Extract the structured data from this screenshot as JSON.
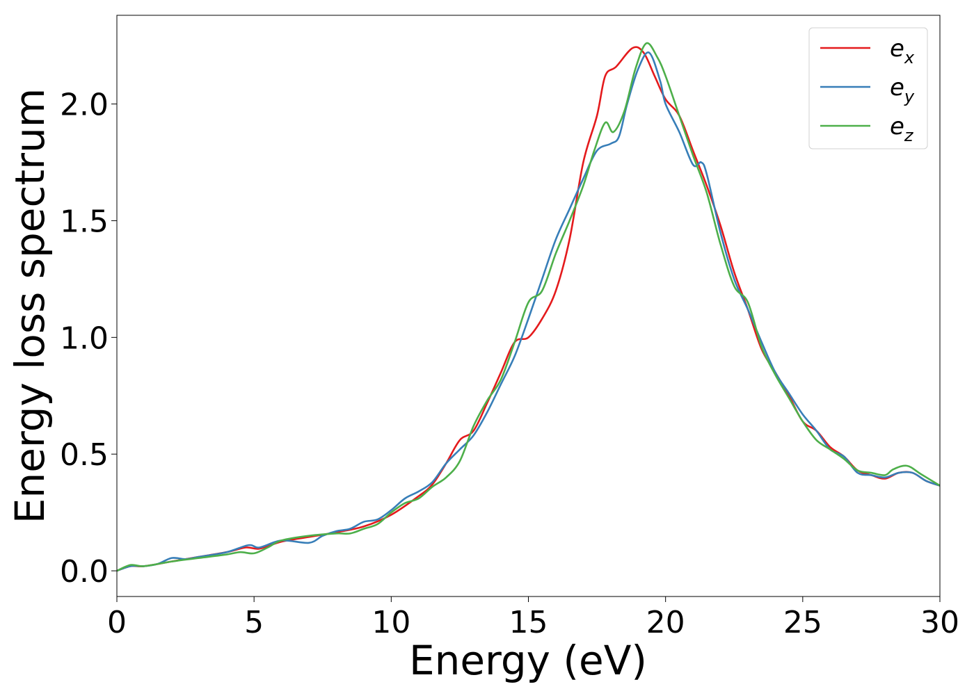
{
  "chart_data": {
    "type": "line",
    "title": "",
    "xlabel": "Energy (eV)",
    "ylabel": "Energy loss spectrum",
    "xlim": [
      0,
      30
    ],
    "ylim": [
      -0.11,
      2.38
    ],
    "xticks": [
      0,
      5,
      10,
      15,
      20,
      25,
      30
    ],
    "xtick_labels": [
      "0",
      "5",
      "10",
      "15",
      "20",
      "25",
      "30"
    ],
    "yticks": [
      0.0,
      0.5,
      1.0,
      1.5,
      2.0
    ],
    "ytick_labels": [
      "0.0",
      "0.5",
      "1.0",
      "1.5",
      "2.0"
    ],
    "grid": false,
    "legend_position": "top-right",
    "series": [
      {
        "name": "e_x",
        "label_base": "e",
        "label_sub": "x",
        "color": "#e41a1c",
        "points": [
          [
            0,
            0
          ],
          [
            0.5,
            0.02
          ],
          [
            1,
            0.02
          ],
          [
            2,
            0.04
          ],
          [
            3,
            0.06
          ],
          [
            4,
            0.08
          ],
          [
            4.7,
            0.1
          ],
          [
            5.2,
            0.095
          ],
          [
            6,
            0.125
          ],
          [
            7,
            0.145
          ],
          [
            8,
            0.165
          ],
          [
            9,
            0.19
          ],
          [
            10,
            0.24
          ],
          [
            11,
            0.32
          ],
          [
            11.5,
            0.37
          ],
          [
            12,
            0.46
          ],
          [
            12.5,
            0.56
          ],
          [
            13,
            0.6
          ],
          [
            13.5,
            0.72
          ],
          [
            14,
            0.85
          ],
          [
            14.5,
            0.98
          ],
          [
            15,
            1.0
          ],
          [
            15.5,
            1.08
          ],
          [
            16,
            1.2
          ],
          [
            16.5,
            1.42
          ],
          [
            17,
            1.75
          ],
          [
            17.5,
            1.95
          ],
          [
            17.8,
            2.12
          ],
          [
            18.2,
            2.16
          ],
          [
            18.8,
            2.24
          ],
          [
            19.2,
            2.22
          ],
          [
            19.6,
            2.12
          ],
          [
            20,
            2.02
          ],
          [
            20.5,
            1.95
          ],
          [
            21,
            1.8
          ],
          [
            21.5,
            1.65
          ],
          [
            22,
            1.48
          ],
          [
            22.5,
            1.28
          ],
          [
            23,
            1.12
          ],
          [
            23.5,
            0.95
          ],
          [
            24,
            0.85
          ],
          [
            24.5,
            0.75
          ],
          [
            25,
            0.64
          ],
          [
            25.5,
            0.6
          ],
          [
            26,
            0.53
          ],
          [
            26.5,
            0.49
          ],
          [
            27,
            0.43
          ],
          [
            27.5,
            0.41
          ],
          [
            28,
            0.395
          ],
          [
            28.5,
            0.42
          ],
          [
            29,
            0.42
          ],
          [
            29.5,
            0.385
          ],
          [
            30,
            0.365
          ]
        ]
      },
      {
        "name": "e_y",
        "label_base": "e",
        "label_sub": "y",
        "color": "#377eb8",
        "points": [
          [
            0,
            0
          ],
          [
            0.5,
            0.02
          ],
          [
            1,
            0.02
          ],
          [
            1.5,
            0.03
          ],
          [
            2,
            0.055
          ],
          [
            2.5,
            0.05
          ],
          [
            3,
            0.06
          ],
          [
            4,
            0.08
          ],
          [
            4.8,
            0.11
          ],
          [
            5.2,
            0.1
          ],
          [
            6,
            0.13
          ],
          [
            7,
            0.12
          ],
          [
            7.5,
            0.15
          ],
          [
            8,
            0.17
          ],
          [
            8.5,
            0.18
          ],
          [
            9,
            0.21
          ],
          [
            9.5,
            0.22
          ],
          [
            10,
            0.26
          ],
          [
            10.5,
            0.31
          ],
          [
            11,
            0.34
          ],
          [
            11.5,
            0.38
          ],
          [
            12,
            0.46
          ],
          [
            12.5,
            0.52
          ],
          [
            13,
            0.58
          ],
          [
            13.5,
            0.68
          ],
          [
            14,
            0.8
          ],
          [
            14.5,
            0.92
          ],
          [
            15,
            1.08
          ],
          [
            15.5,
            1.25
          ],
          [
            16,
            1.42
          ],
          [
            16.5,
            1.55
          ],
          [
            17,
            1.68
          ],
          [
            17.5,
            1.8
          ],
          [
            18,
            1.83
          ],
          [
            18.3,
            1.86
          ],
          [
            18.6,
            2.0
          ],
          [
            19,
            2.15
          ],
          [
            19.4,
            2.22
          ],
          [
            19.8,
            2.1
          ],
          [
            20,
            2.0
          ],
          [
            20.5,
            1.88
          ],
          [
            21,
            1.74
          ],
          [
            21.3,
            1.75
          ],
          [
            21.5,
            1.7
          ],
          [
            22,
            1.45
          ],
          [
            22.5,
            1.25
          ],
          [
            23,
            1.12
          ],
          [
            23.5,
            0.98
          ],
          [
            24,
            0.85
          ],
          [
            24.5,
            0.76
          ],
          [
            25,
            0.67
          ],
          [
            25.5,
            0.6
          ],
          [
            26,
            0.52
          ],
          [
            26.5,
            0.49
          ],
          [
            27,
            0.42
          ],
          [
            27.5,
            0.41
          ],
          [
            28,
            0.4
          ],
          [
            28.5,
            0.42
          ],
          [
            29,
            0.42
          ],
          [
            29.5,
            0.385
          ],
          [
            30,
            0.365
          ]
        ]
      },
      {
        "name": "e_z",
        "label_base": "e",
        "label_sub": "z",
        "color": "#4daf4a",
        "points": [
          [
            0,
            0
          ],
          [
            0.5,
            0.025
          ],
          [
            1,
            0.02
          ],
          [
            2,
            0.04
          ],
          [
            3,
            0.055
          ],
          [
            4,
            0.07
          ],
          [
            4.5,
            0.08
          ],
          [
            5,
            0.075
          ],
          [
            5.5,
            0.1
          ],
          [
            6,
            0.13
          ],
          [
            7,
            0.15
          ],
          [
            8,
            0.16
          ],
          [
            8.5,
            0.16
          ],
          [
            9,
            0.18
          ],
          [
            9.5,
            0.2
          ],
          [
            10,
            0.25
          ],
          [
            10.5,
            0.29
          ],
          [
            11,
            0.31
          ],
          [
            11.5,
            0.36
          ],
          [
            12,
            0.4
          ],
          [
            12.5,
            0.47
          ],
          [
            13,
            0.62
          ],
          [
            13.5,
            0.73
          ],
          [
            14,
            0.82
          ],
          [
            14.5,
            0.98
          ],
          [
            15,
            1.15
          ],
          [
            15.5,
            1.2
          ],
          [
            16,
            1.36
          ],
          [
            16.5,
            1.5
          ],
          [
            17,
            1.65
          ],
          [
            17.4,
            1.8
          ],
          [
            17.8,
            1.92
          ],
          [
            18.1,
            1.88
          ],
          [
            18.5,
            1.97
          ],
          [
            18.9,
            2.15
          ],
          [
            19.3,
            2.26
          ],
          [
            19.7,
            2.2
          ],
          [
            20,
            2.12
          ],
          [
            20.5,
            1.95
          ],
          [
            21,
            1.78
          ],
          [
            21.5,
            1.62
          ],
          [
            22,
            1.4
          ],
          [
            22.5,
            1.22
          ],
          [
            23,
            1.15
          ],
          [
            23.5,
            0.96
          ],
          [
            24,
            0.84
          ],
          [
            24.5,
            0.74
          ],
          [
            25,
            0.64
          ],
          [
            25.5,
            0.56
          ],
          [
            26,
            0.52
          ],
          [
            26.5,
            0.48
          ],
          [
            27,
            0.43
          ],
          [
            27.5,
            0.42
          ],
          [
            28,
            0.41
          ],
          [
            28.3,
            0.435
          ],
          [
            28.8,
            0.45
          ],
          [
            29.3,
            0.415
          ],
          [
            30,
            0.365
          ]
        ]
      }
    ]
  }
}
